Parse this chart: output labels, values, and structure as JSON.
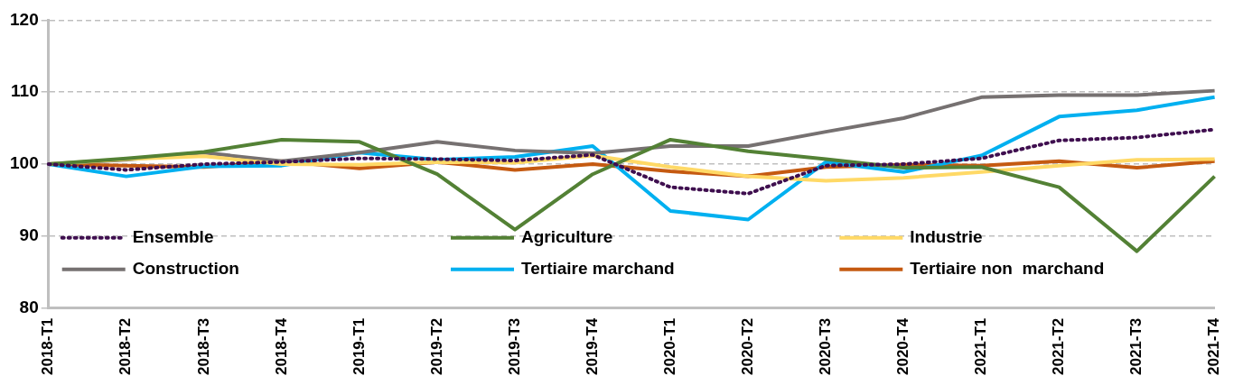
{
  "chart_data": {
    "type": "line",
    "categories": [
      "2018-T1",
      "2018-T2",
      "2018-T3",
      "2018-T4",
      "2019-T1",
      "2019-T2",
      "2019-T3",
      "2019-T4",
      "2020-T1",
      "2020-T2",
      "2020-T3",
      "2020-T4",
      "2021-T1",
      "2021-T2",
      "2021-T3",
      "2021-T4"
    ],
    "series": [
      {
        "name": "Ensemble",
        "color": "#3f0f4f",
        "line_style": "dotted",
        "values": [
          100,
          99.2,
          100,
          100.3,
          100.8,
          100.7,
          100.5,
          101.3,
          96.8,
          95.9,
          99.8,
          100,
          100.8,
          103.3,
          103.7,
          104.8
        ]
      },
      {
        "name": "Agriculture",
        "color": "#538135",
        "values": [
          100,
          100.8,
          101.7,
          103.4,
          103.1,
          98.6,
          90.9,
          98.6,
          103.4,
          101.8,
          100.7,
          99.5,
          99.6,
          96.8,
          87.9,
          98.3
        ]
      },
      {
        "name": "Industrie",
        "color": "#ffd966",
        "values": [
          100,
          100.7,
          101.1,
          100,
          99.9,
          100.3,
          100.2,
          101.2,
          99.6,
          98.3,
          97.7,
          98.1,
          98.9,
          99.8,
          100.6,
          100.7
        ]
      },
      {
        "name": "Construction",
        "color": "#767171",
        "values": [
          100,
          100.6,
          101.6,
          100.4,
          101.6,
          103.1,
          101.9,
          101.5,
          102.5,
          102.5,
          104.5,
          106.4,
          109.3,
          109.6,
          109.6,
          110.2
        ]
      },
      {
        "name": "Tertiaire marchand",
        "color": "#00b0f0",
        "values": [
          100,
          98.3,
          99.7,
          99.8,
          101.6,
          100.6,
          101,
          102.5,
          93.5,
          92.3,
          100.3,
          98.9,
          101.2,
          106.6,
          107.5,
          109.3
        ]
      },
      {
        "name": "Tertiaire non  marchand",
        "color": "#c55a11",
        "values": [
          100,
          99.8,
          99.6,
          100.4,
          99.4,
          100.3,
          99.2,
          100,
          99,
          98.3,
          99.6,
          99.9,
          99.8,
          100.4,
          99.5,
          100.4
        ]
      }
    ],
    "ylim": [
      80,
      120
    ],
    "yticks": [
      80,
      90,
      100,
      110,
      120
    ],
    "grid": "y",
    "legend": "bottom",
    "line_style": "solid",
    "marker": "none"
  }
}
